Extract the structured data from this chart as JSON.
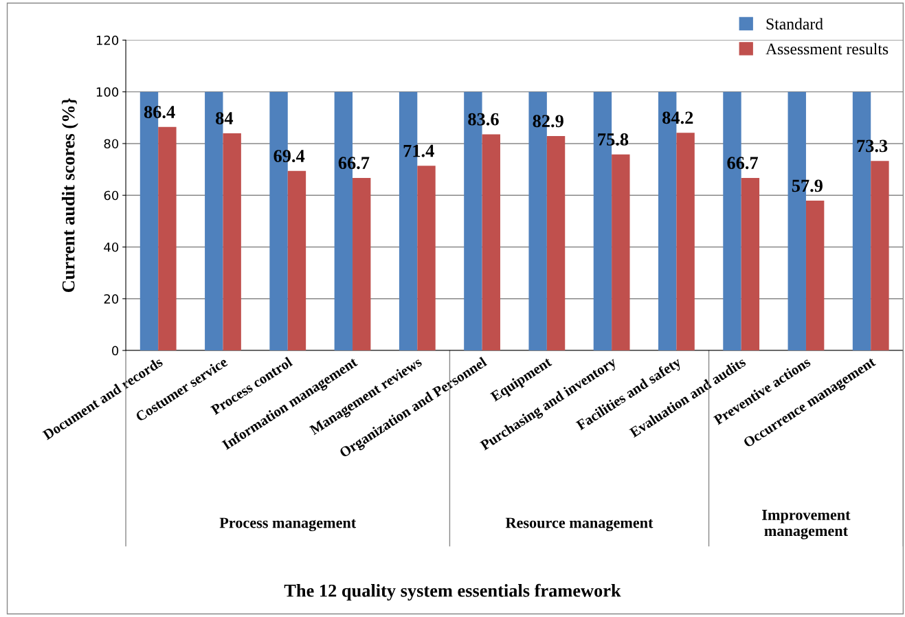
{
  "chart_data": {
    "type": "bar",
    "ylabel": "Current audit scores (%}",
    "categories": [
      "Document and records",
      "Costumer service",
      "Process control",
      "Information management",
      "Management reviews",
      "Organization and Personnel",
      "Equipment",
      "Purchasing and inventory",
      "Facilities and safety",
      "Evaluation and audits",
      "Preventive actions",
      "Occurrence management"
    ],
    "series": [
      {
        "name": "Standard",
        "color": "#4f81bd",
        "values": [
          100,
          100,
          100,
          100,
          100,
          100,
          100,
          100,
          100,
          100,
          100,
          100
        ]
      },
      {
        "name": "Assessment results",
        "color": "#c0504d",
        "values": [
          86.4,
          84,
          69.4,
          66.7,
          71.4,
          83.6,
          82.9,
          75.8,
          84.2,
          66.7,
          57.9,
          73.3
        ],
        "value_labels": [
          "86.4",
          "84",
          "69.4",
          "66.7",
          "71.4",
          "83.6",
          "82.9",
          "75.8",
          "84.2",
          "66.7",
          "57.9",
          "73.3"
        ]
      }
    ],
    "ylim": [
      0,
      120
    ],
    "yticks": [
      0,
      20,
      40,
      60,
      80,
      100,
      120
    ],
    "grid": "y",
    "legend": "top right",
    "annotations": [
      "Process management",
      "Resource management",
      "Improvement\nmanagement",
      "The 12 quality system essentials framework"
    ]
  }
}
